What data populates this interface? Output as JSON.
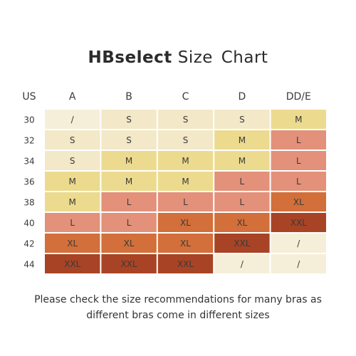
{
  "title": {
    "brand": "HBselect",
    "rest": "Size Chart"
  },
  "note": {
    "line1": "Please check the size recommendations for many bras as",
    "line2": "different bras come in different sizes"
  },
  "colors": {
    "S": "#f3e8c7",
    "M": "#ecdb8e",
    "L": "#e3917a",
    "XL": "#d26f3a",
    "XXL": "#a84425",
    "/": "#f5eed9",
    "text": "#3a3a3a"
  },
  "chart_data": {
    "type": "table",
    "corner_label": "US",
    "columns": [
      "A",
      "B",
      "C",
      "D",
      "DD/E"
    ],
    "rows": [
      {
        "band": "30",
        "cells": [
          "/",
          "S",
          "S",
          "S",
          "M"
        ]
      },
      {
        "band": "32",
        "cells": [
          "S",
          "S",
          "S",
          "M",
          "L"
        ]
      },
      {
        "band": "34",
        "cells": [
          "S",
          "M",
          "M",
          "M",
          "L"
        ]
      },
      {
        "band": "36",
        "cells": [
          "M",
          "M",
          "M",
          "L",
          "L"
        ]
      },
      {
        "band": "38",
        "cells": [
          "M",
          "L",
          "L",
          "L",
          "XL"
        ]
      },
      {
        "band": "40",
        "cells": [
          "L",
          "L",
          "XL",
          "XL",
          "XXL"
        ]
      },
      {
        "band": "42",
        "cells": [
          "XL",
          "XL",
          "XL",
          "XXL",
          "/"
        ]
      },
      {
        "band": "44",
        "cells": [
          "XXL",
          "XXL",
          "XXL",
          "/",
          "/"
        ]
      }
    ]
  }
}
